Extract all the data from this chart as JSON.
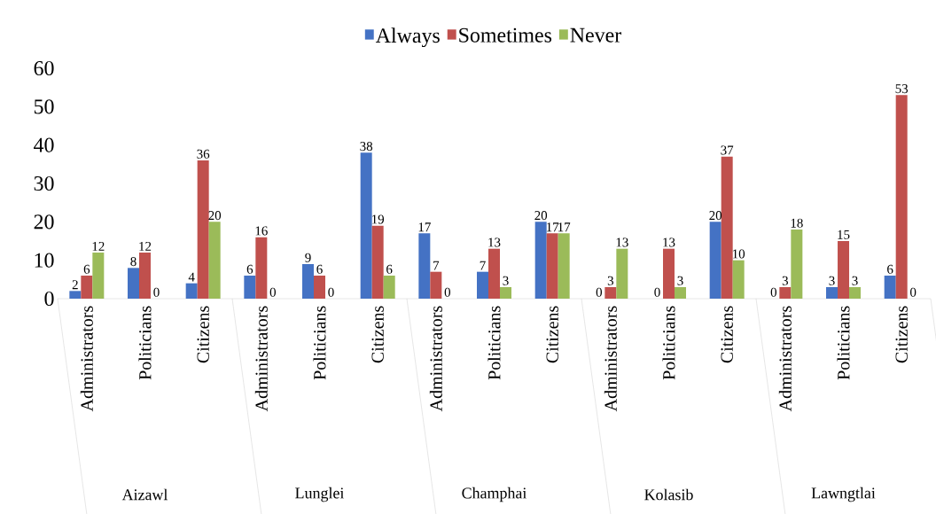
{
  "chart_data": {
    "type": "bar",
    "categories": [
      "Administrators",
      "Politicians",
      "Citizens",
      "Administrators",
      "Politicians",
      "Citizens",
      "Administrators",
      "Politicians",
      "Citizens",
      "Administrators",
      "Politicians",
      "Citizens",
      "Administrators",
      "Politicians",
      "Citizens"
    ],
    "series": [
      {
        "name": "Always",
        "color": "#4472c4",
        "values": [
          2,
          8,
          4,
          6,
          9,
          38,
          17,
          7,
          20,
          0,
          0,
          20,
          0,
          3,
          6
        ]
      },
      {
        "name": "Sometimes",
        "color": "#c0504d",
        "values": [
          6,
          12,
          36,
          16,
          6,
          19,
          7,
          13,
          17,
          3,
          13,
          37,
          3,
          15,
          53
        ]
      },
      {
        "name": "Never",
        "color": "#9bbb59",
        "values": [
          12,
          0,
          20,
          0,
          0,
          6,
          0,
          3,
          17,
          13,
          3,
          10,
          18,
          3,
          0
        ]
      }
    ],
    "annotations": [
      "Aizawl",
      "Lunglei",
      "Champhai",
      "Kolasib",
      "Lawngtlai"
    ],
    "ylim": [
      0,
      60
    ],
    "yticks": [
      0,
      10,
      20,
      30,
      40,
      50,
      60
    ],
    "data_labels": true,
    "legend": "top",
    "grid": false
  }
}
